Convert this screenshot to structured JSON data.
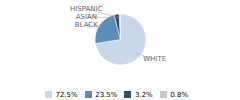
{
  "chart_data": {
    "type": "pie",
    "categories": [
      "WHITE",
      "BLACK",
      "ASIAN",
      "HISPANIC"
    ],
    "values": [
      72.5,
      23.5,
      3.2,
      0.8
    ],
    "value_labels": [
      "72.5%",
      "23.5%",
      "3.2%",
      "0.8%"
    ],
    "colors": [
      "#c8d8e8",
      "#5b8db8",
      "#2b4f72",
      "#c8c8c8"
    ],
    "legend": "bottom"
  }
}
